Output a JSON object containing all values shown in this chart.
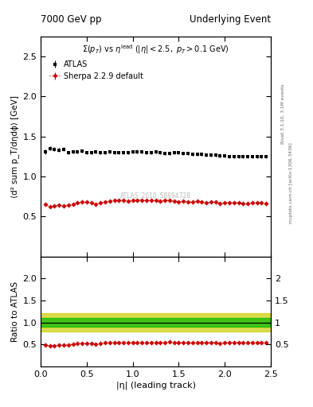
{
  "title_left": "7000 GeV pp",
  "title_right": "Underlying Event",
  "annotation": "ATLAS_2010_S8894728",
  "ylabel_main": "⟨d² sum p_T/dηdϕ⟩ [GeV]",
  "ylabel_ratio": "Ratio to ATLAS",
  "xlabel": "|η| (leading track)",
  "right_label_top": "Rivet 3.1.10, 3.1M events",
  "right_label_bot": "mcplots.cern.ch [arXiv:1306.3436]",
  "ylim_main": [
    0.0,
    2.75
  ],
  "ylim_ratio": [
    0.0,
    2.5
  ],
  "main_yticks": [
    0.5,
    1.0,
    1.5,
    2.0,
    2.5
  ],
  "ratio_yticks": [
    0.5,
    1.0,
    1.5,
    2.0
  ],
  "xlim": [
    0.0,
    2.5
  ],
  "atlas_color": "#000000",
  "sherpa_color": "#cc0000",
  "band_green": "#00bb00",
  "band_yellow": "#cccc00",
  "atlas_data_x": [
    0.05,
    0.1,
    0.15,
    0.2,
    0.25,
    0.3,
    0.35,
    0.4,
    0.45,
    0.5,
    0.55,
    0.6,
    0.65,
    0.7,
    0.75,
    0.8,
    0.85,
    0.9,
    0.95,
    1.0,
    1.05,
    1.1,
    1.15,
    1.2,
    1.25,
    1.3,
    1.35,
    1.4,
    1.45,
    1.5,
    1.55,
    1.6,
    1.65,
    1.7,
    1.75,
    1.8,
    1.85,
    1.9,
    1.95,
    2.0,
    2.05,
    2.1,
    2.15,
    2.2,
    2.25,
    2.3,
    2.35,
    2.4,
    2.45
  ],
  "atlas_data_y": [
    1.31,
    1.35,
    1.34,
    1.33,
    1.34,
    1.3,
    1.31,
    1.31,
    1.32,
    1.3,
    1.3,
    1.31,
    1.3,
    1.3,
    1.31,
    1.3,
    1.3,
    1.3,
    1.3,
    1.31,
    1.31,
    1.31,
    1.3,
    1.3,
    1.31,
    1.3,
    1.29,
    1.29,
    1.3,
    1.3,
    1.29,
    1.29,
    1.28,
    1.28,
    1.28,
    1.27,
    1.27,
    1.27,
    1.26,
    1.26,
    1.25,
    1.25,
    1.25,
    1.25,
    1.25,
    1.25,
    1.25,
    1.25,
    1.25
  ],
  "atlas_err_y": [
    0.03,
    0.025,
    0.025,
    0.025,
    0.025,
    0.02,
    0.02,
    0.02,
    0.02,
    0.02,
    0.02,
    0.02,
    0.02,
    0.02,
    0.02,
    0.02,
    0.02,
    0.02,
    0.02,
    0.02,
    0.02,
    0.02,
    0.02,
    0.02,
    0.02,
    0.02,
    0.02,
    0.02,
    0.02,
    0.02,
    0.02,
    0.02,
    0.02,
    0.02,
    0.02,
    0.02,
    0.02,
    0.02,
    0.02,
    0.02,
    0.02,
    0.02,
    0.02,
    0.02,
    0.02,
    0.02,
    0.02,
    0.02,
    0.02
  ],
  "sherpa_data_x": [
    0.05,
    0.1,
    0.15,
    0.2,
    0.25,
    0.3,
    0.35,
    0.4,
    0.45,
    0.5,
    0.55,
    0.6,
    0.65,
    0.7,
    0.75,
    0.8,
    0.85,
    0.9,
    0.95,
    1.0,
    1.05,
    1.1,
    1.15,
    1.2,
    1.25,
    1.3,
    1.35,
    1.4,
    1.45,
    1.5,
    1.55,
    1.6,
    1.65,
    1.7,
    1.75,
    1.8,
    1.85,
    1.9,
    1.95,
    2.0,
    2.05,
    2.1,
    2.15,
    2.2,
    2.25,
    2.3,
    2.35,
    2.4,
    2.45
  ],
  "sherpa_data_y": [
    0.65,
    0.62,
    0.63,
    0.64,
    0.63,
    0.64,
    0.65,
    0.67,
    0.68,
    0.68,
    0.67,
    0.65,
    0.67,
    0.68,
    0.69,
    0.7,
    0.7,
    0.7,
    0.69,
    0.7,
    0.7,
    0.7,
    0.7,
    0.7,
    0.7,
    0.69,
    0.7,
    0.7,
    0.69,
    0.68,
    0.69,
    0.68,
    0.68,
    0.69,
    0.68,
    0.67,
    0.68,
    0.68,
    0.66,
    0.67,
    0.67,
    0.67,
    0.67,
    0.66,
    0.66,
    0.67,
    0.67,
    0.67,
    0.66
  ],
  "sherpa_err_y": [
    0.01,
    0.01,
    0.01,
    0.01,
    0.01,
    0.01,
    0.01,
    0.01,
    0.01,
    0.01,
    0.01,
    0.01,
    0.01,
    0.01,
    0.01,
    0.01,
    0.01,
    0.01,
    0.01,
    0.01,
    0.01,
    0.01,
    0.01,
    0.01,
    0.01,
    0.01,
    0.01,
    0.01,
    0.01,
    0.01,
    0.01,
    0.01,
    0.01,
    0.01,
    0.01,
    0.01,
    0.01,
    0.01,
    0.01,
    0.01,
    0.01,
    0.01,
    0.01,
    0.01,
    0.01,
    0.01,
    0.01,
    0.01,
    0.01
  ],
  "ratio_y": [
    0.49,
    0.46,
    0.47,
    0.48,
    0.48,
    0.49,
    0.5,
    0.52,
    0.52,
    0.52,
    0.52,
    0.5,
    0.52,
    0.53,
    0.53,
    0.54,
    0.54,
    0.54,
    0.53,
    0.54,
    0.54,
    0.54,
    0.54,
    0.54,
    0.54,
    0.53,
    0.54,
    0.55,
    0.54,
    0.53,
    0.54,
    0.53,
    0.53,
    0.54,
    0.54,
    0.53,
    0.54,
    0.54,
    0.52,
    0.53,
    0.54,
    0.54,
    0.54,
    0.53,
    0.53,
    0.54,
    0.54,
    0.54,
    0.53
  ],
  "ratio_err_y": [
    0.014,
    0.015,
    0.013,
    0.013,
    0.013,
    0.013,
    0.013,
    0.013,
    0.013,
    0.013,
    0.013,
    0.013,
    0.013,
    0.013,
    0.013,
    0.013,
    0.013,
    0.013,
    0.013,
    0.013,
    0.013,
    0.013,
    0.013,
    0.013,
    0.013,
    0.013,
    0.013,
    0.013,
    0.013,
    0.013,
    0.013,
    0.013,
    0.013,
    0.013,
    0.013,
    0.013,
    0.013,
    0.013,
    0.013,
    0.013,
    0.013,
    0.013,
    0.013,
    0.013,
    0.013,
    0.013,
    0.013,
    0.013,
    0.013
  ]
}
